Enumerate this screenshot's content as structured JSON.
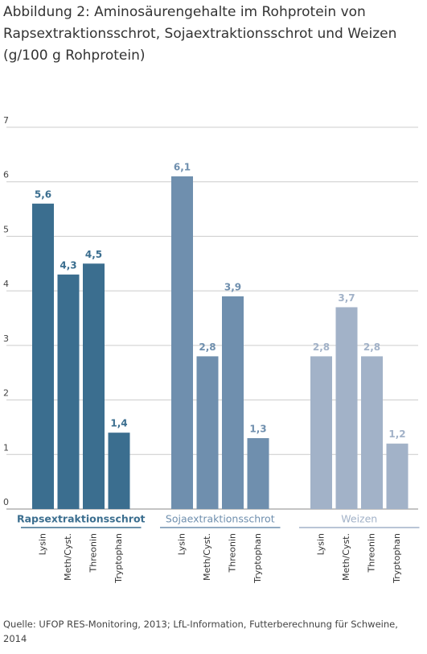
{
  "chart_data": {
    "type": "bar",
    "title": [
      "Abbildung 2: Aminosäurengehalte im Rohprotein von",
      "Rapsextraktionsschrot, Sojaextraktionsschrot und Weizen",
      "(g/100 g Rohprotein)"
    ],
    "categories": [
      "Lysin",
      "Meth/Cyst.",
      "Threonin",
      "Tryptophan"
    ],
    "series": [
      {
        "name": "Rapsextraktionsschrot",
        "color": "#3b6e8f",
        "values": [
          5.6,
          4.3,
          4.5,
          1.4
        ],
        "value_labels": [
          "5,6",
          "4,3",
          "4,5",
          "1,4"
        ]
      },
      {
        "name": "Sojaextraktionsschrot",
        "color": "#6f8fae",
        "values": [
          6.1,
          2.8,
          3.9,
          1.3
        ],
        "value_labels": [
          "6,1",
          "2,8",
          "3,9",
          "1,3"
        ]
      },
      {
        "name": "Weizen",
        "color": "#a2b2c8",
        "values": [
          2.8,
          3.7,
          2.8,
          1.2
        ],
        "value_labels": [
          "2,8",
          "3,7",
          "2,8",
          "1,2"
        ]
      }
    ],
    "ylim": [
      0,
      7
    ],
    "yticks": [
      0,
      1,
      2,
      3,
      4,
      5,
      6,
      7
    ],
    "grid": true,
    "source": "Quelle: UFOP RES-Monitoring, 2013; LfL-Information, Futterberechnung für Schweine, 2014"
  }
}
